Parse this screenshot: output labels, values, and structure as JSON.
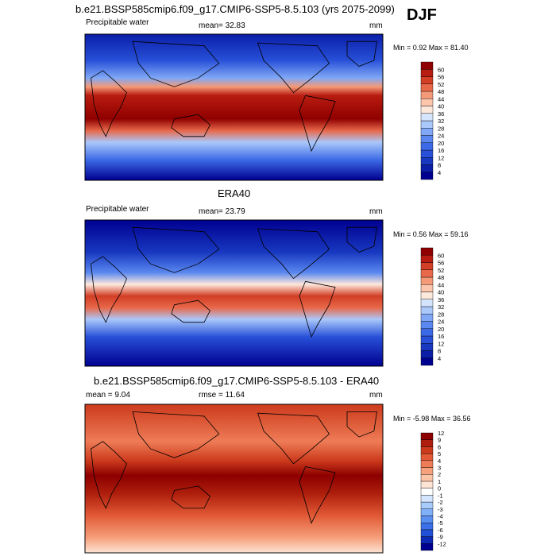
{
  "season": "DJF",
  "chart_data": [
    {
      "type": "heatmap",
      "title": "b.e21.BSSP585cmip6.f09_g17.CMIP6-SSP5-8.5.103 (yrs 2075-2099)",
      "left_label": "Precipitable water",
      "center_label": "mean=  32.83",
      "units": "mm",
      "range_label": "Min =   0.92 Max =  81.40",
      "mean": 32.83,
      "min": 0.92,
      "max": 81.4,
      "colorbar": [
        "4",
        "8",
        "12",
        "16",
        "20",
        "24",
        "28",
        "32",
        "36",
        "40",
        "44",
        "48",
        "52",
        "56",
        "60"
      ],
      "colors": [
        "#000090",
        "#0a1ea8",
        "#1838c0",
        "#2850d8",
        "#3c6ae6",
        "#5a88f0",
        "#80a8f6",
        "#aac8fa",
        "#d4e4fc",
        "#fde8dc",
        "#fbc6ac",
        "#f49a78",
        "#e8684a",
        "#d23e26",
        "#b81c10",
        "#900000"
      ]
    },
    {
      "type": "heatmap",
      "title": "ERA40",
      "left_label": "Precipitable water",
      "center_label": "mean=  23.79",
      "units": "mm",
      "range_label": "Min =   0.56 Max =  59.16",
      "mean": 23.79,
      "min": 0.56,
      "max": 59.16,
      "colorbar": [
        "4",
        "8",
        "12",
        "16",
        "20",
        "24",
        "28",
        "32",
        "36",
        "40",
        "44",
        "48",
        "52",
        "56",
        "60"
      ],
      "colors": [
        "#000090",
        "#0a1ea8",
        "#1838c0",
        "#2850d8",
        "#3c6ae6",
        "#5a88f0",
        "#80a8f6",
        "#aac8fa",
        "#d4e4fc",
        "#fde8dc",
        "#fbc6ac",
        "#f49a78",
        "#e8684a",
        "#d23e26",
        "#b81c10",
        "#900000"
      ]
    },
    {
      "type": "heatmap",
      "title": "b.e21.BSSP585cmip6.f09_g17.CMIP6-SSP5-8.5.103 - ERA40",
      "left_label": "mean =   9.04",
      "center_label": "rmse =  11.64",
      "units": "mm",
      "range_label": "Min =  -5.98 Max =  36.56",
      "mean": 9.04,
      "rmse": 11.64,
      "min": -5.98,
      "max": 36.56,
      "colorbar": [
        "-12",
        "-9",
        "-6",
        "-5",
        "-4",
        "-3",
        "-2",
        "-1",
        "0",
        "1",
        "2",
        "3",
        "4",
        "5",
        "6",
        "9",
        "12"
      ],
      "colors": [
        "#000090",
        "#0c28b4",
        "#2050d6",
        "#3c70e8",
        "#5a90f2",
        "#80b0f8",
        "#a8ccfb",
        "#d4e6fd",
        "#ffffff",
        "#fde4d4",
        "#fbc4a6",
        "#f6a07c",
        "#ee7c56",
        "#e25a36",
        "#cc3a1c",
        "#ae1e0c",
        "#8c0000"
      ]
    }
  ]
}
